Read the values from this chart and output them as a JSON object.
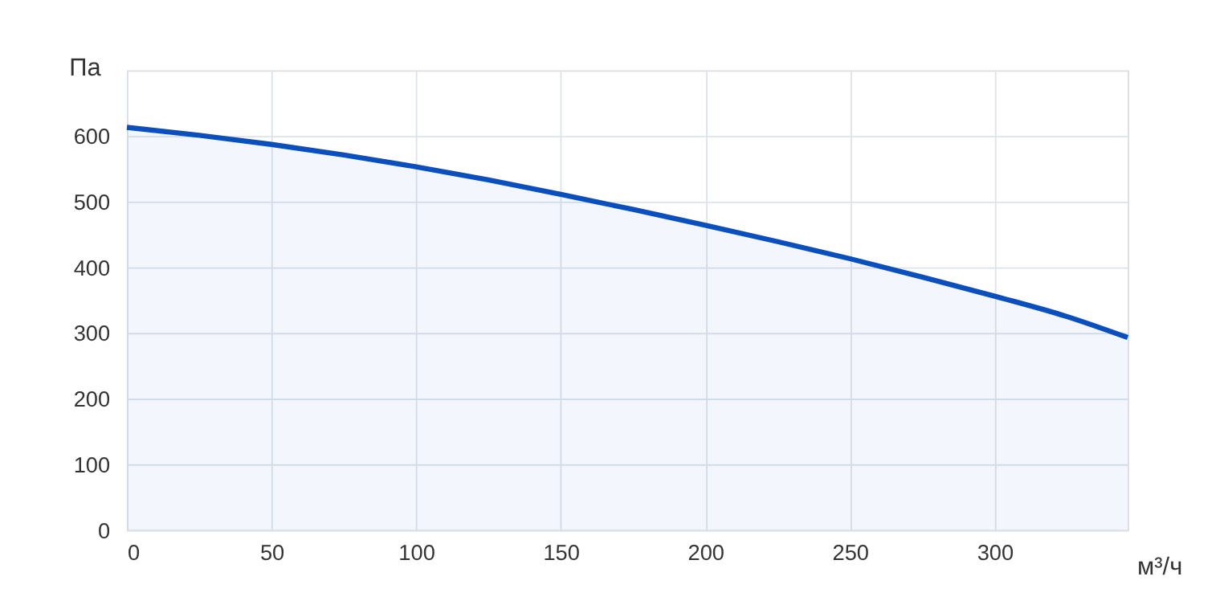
{
  "chart_data": {
    "type": "area",
    "xlabel": "м³/ч",
    "ylabel": "Па",
    "x": [
      0,
      25,
      50,
      75,
      100,
      125,
      150,
      175,
      200,
      225,
      250,
      275,
      300,
      325,
      346
    ],
    "series": [
      {
        "color": "#0b4fbd",
        "values": [
          613,
          601,
          587,
          571,
          553,
          533,
          511,
          488,
          464,
          439,
          413,
          385,
          356,
          325,
          293
        ]
      }
    ],
    "xlim": [
      0,
      346
    ],
    "xticks": [
      0,
      50,
      100,
      150,
      200,
      250,
      300
    ],
    "ylim": [
      0,
      700
    ],
    "yticks": [
      0,
      100,
      200,
      300,
      400,
      500,
      600
    ],
    "grid": true,
    "line_style": "solid",
    "marker": "none"
  }
}
